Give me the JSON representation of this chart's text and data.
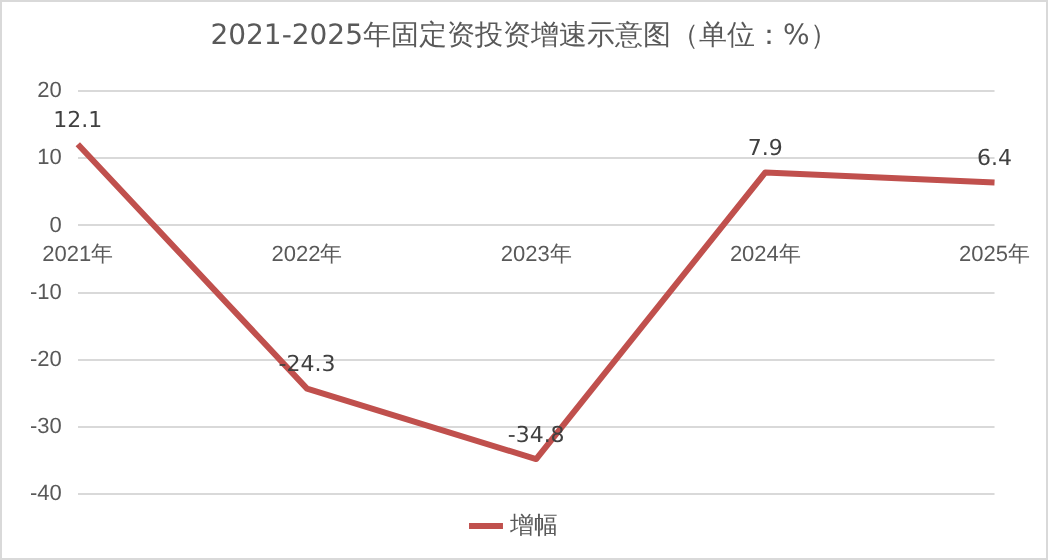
{
  "chart_data": {
    "type": "line",
    "title": "2021-2025年固定资投资增速示意图（单位：%）",
    "categories": [
      "2021年",
      "2022年",
      "2023年",
      "2024年",
      "2025年"
    ],
    "series": [
      {
        "name": "增幅",
        "color": "#c0504d",
        "values": [
          12.1,
          -24.3,
          -34.8,
          7.9,
          6.4
        ]
      }
    ],
    "ylim": [
      -40,
      20
    ],
    "yticks": [
      -40,
      -30,
      -20,
      -10,
      0,
      10,
      20
    ],
    "grid": "y",
    "legend": "bottom",
    "data_labels": true,
    "marker": "none",
    "line_style": "solid"
  }
}
